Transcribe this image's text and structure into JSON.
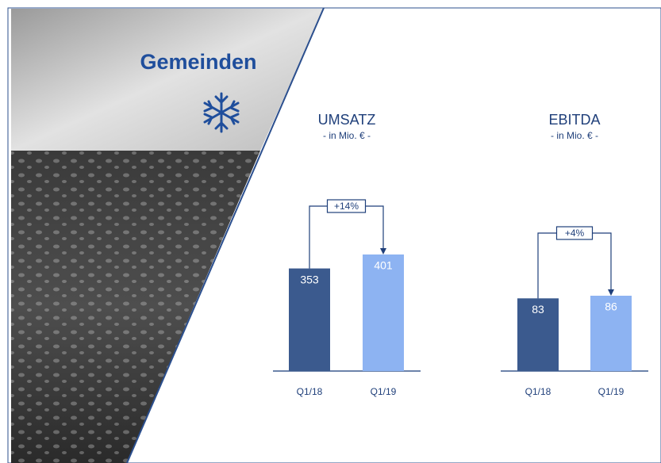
{
  "title": "Gemeinden",
  "chart_data": [
    {
      "type": "bar",
      "title": "UMSATZ",
      "subtitle": "- in Mio. € -",
      "categories": [
        "Q1/18",
        "Q1/19"
      ],
      "values": [
        353,
        401
      ],
      "colors": [
        "#3b5a8e",
        "#8db3f2"
      ],
      "annotation": "+14%"
    },
    {
      "type": "bar",
      "title": "EBITDA",
      "subtitle": "- in Mio. € -",
      "categories": [
        "Q1/18",
        "Q1/19"
      ],
      "values": [
        83,
        86
      ],
      "colors": [
        "#3b5a8e",
        "#8db3f2"
      ],
      "annotation": "+4%"
    }
  ]
}
